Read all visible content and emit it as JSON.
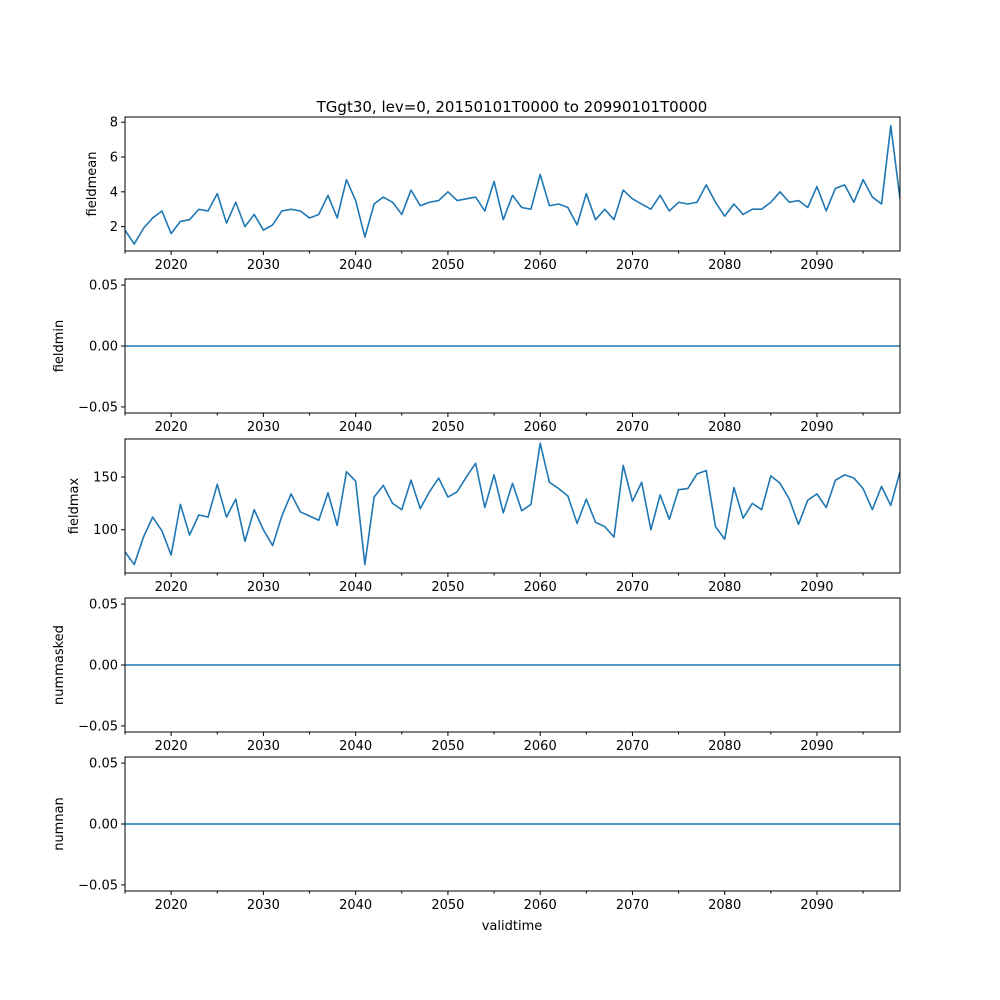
{
  "figure": {
    "title": "TGgt30, lev=0, 20150101T0000 to 20990101T0000",
    "xlabel": "validtime",
    "line_color": "#1f77b4"
  },
  "chart_data": [
    {
      "type": "line",
      "ylabel": "fieldmean",
      "xlim": [
        2015,
        2099
      ],
      "ylim": [
        0.6,
        8.3
      ],
      "yticks": [
        2,
        4,
        6,
        8
      ],
      "ytick_labels": [
        "2",
        "4",
        "6",
        "8"
      ],
      "xticks": [
        2020,
        2030,
        2040,
        2050,
        2060,
        2070,
        2080,
        2090
      ],
      "xtick_labels": [
        "2020",
        "2030",
        "2040",
        "2050",
        "2060",
        "2070",
        "2080",
        "2090"
      ],
      "x": [
        2015,
        2016,
        2017,
        2018,
        2019,
        2020,
        2021,
        2022,
        2023,
        2024,
        2025,
        2026,
        2027,
        2028,
        2029,
        2030,
        2031,
        2032,
        2033,
        2034,
        2035,
        2036,
        2037,
        2038,
        2039,
        2040,
        2041,
        2042,
        2043,
        2044,
        2045,
        2046,
        2047,
        2048,
        2049,
        2050,
        2051,
        2052,
        2053,
        2054,
        2055,
        2056,
        2057,
        2058,
        2059,
        2060,
        2061,
        2062,
        2063,
        2064,
        2065,
        2066,
        2067,
        2068,
        2069,
        2070,
        2071,
        2072,
        2073,
        2074,
        2075,
        2076,
        2077,
        2078,
        2079,
        2080,
        2081,
        2082,
        2083,
        2084,
        2085,
        2086,
        2087,
        2088,
        2089,
        2090,
        2091,
        2092,
        2093,
        2094,
        2095,
        2096,
        2097,
        2098,
        2099
      ],
      "y": [
        1.8,
        1.0,
        1.9,
        2.5,
        2.9,
        1.6,
        2.3,
        2.4,
        3.0,
        2.9,
        3.9,
        2.2,
        3.4,
        2.0,
        2.7,
        1.8,
        2.1,
        2.9,
        3.0,
        2.9,
        2.5,
        2.7,
        3.8,
        2.5,
        4.7,
        3.5,
        1.4,
        3.3,
        3.7,
        3.4,
        2.7,
        4.1,
        3.2,
        3.4,
        3.5,
        4.0,
        3.5,
        3.6,
        3.7,
        2.9,
        4.6,
        2.4,
        3.8,
        3.1,
        3.0,
        5.0,
        3.2,
        3.3,
        3.1,
        2.1,
        3.9,
        2.4,
        3.0,
        2.4,
        4.1,
        3.6,
        3.3,
        3.0,
        3.8,
        2.9,
        3.4,
        3.3,
        3.4,
        4.4,
        3.4,
        2.6,
        3.3,
        2.7,
        3.0,
        3.0,
        3.4,
        4.0,
        3.4,
        3.5,
        3.1,
        4.3,
        2.9,
        4.2,
        4.4,
        3.4,
        4.7,
        3.7,
        3.3,
        7.8,
        3.6
      ]
    },
    {
      "type": "line",
      "ylabel": "fieldmin",
      "xlim": [
        2015,
        2099
      ],
      "ylim": [
        -0.055,
        0.055
      ],
      "yticks": [
        -0.05,
        0.0,
        0.05
      ],
      "ytick_labels": [
        "−0.05",
        "0.00",
        "0.05"
      ],
      "xticks": [
        2020,
        2030,
        2040,
        2050,
        2060,
        2070,
        2080,
        2090
      ],
      "xtick_labels": [
        "2020",
        "2030",
        "2040",
        "2050",
        "2060",
        "2070",
        "2080",
        "2090"
      ],
      "x": [
        2015,
        2099
      ],
      "y": [
        0,
        0
      ]
    },
    {
      "type": "line",
      "ylabel": "fieldmax",
      "xlim": [
        2015,
        2099
      ],
      "ylim": [
        59,
        186
      ],
      "yticks": [
        100,
        150
      ],
      "ytick_labels": [
        "100",
        "150"
      ],
      "xticks": [
        2020,
        2030,
        2040,
        2050,
        2060,
        2070,
        2080,
        2090
      ],
      "xtick_labels": [
        "2020",
        "2030",
        "2040",
        "2050",
        "2060",
        "2070",
        "2080",
        "2090"
      ],
      "x": [
        2015,
        2016,
        2017,
        2018,
        2019,
        2020,
        2021,
        2022,
        2023,
        2024,
        2025,
        2026,
        2027,
        2028,
        2029,
        2030,
        2031,
        2032,
        2033,
        2034,
        2035,
        2036,
        2037,
        2038,
        2039,
        2040,
        2041,
        2042,
        2043,
        2044,
        2045,
        2046,
        2047,
        2048,
        2049,
        2050,
        2051,
        2052,
        2053,
        2054,
        2055,
        2056,
        2057,
        2058,
        2059,
        2060,
        2061,
        2062,
        2063,
        2064,
        2065,
        2066,
        2067,
        2068,
        2069,
        2070,
        2071,
        2072,
        2073,
        2074,
        2075,
        2076,
        2077,
        2078,
        2079,
        2080,
        2081,
        2082,
        2083,
        2084,
        2085,
        2086,
        2087,
        2088,
        2089,
        2090,
        2091,
        2092,
        2093,
        2094,
        2095,
        2096,
        2097,
        2098,
        2099
      ],
      "y": [
        79,
        67,
        93,
        112,
        99,
        76,
        124,
        95,
        114,
        112,
        143,
        112,
        129,
        89,
        119,
        100,
        85,
        113,
        134,
        117,
        113,
        109,
        135,
        104,
        155,
        146,
        67,
        131,
        142,
        125,
        119,
        147,
        120,
        136,
        149,
        131,
        136,
        150,
        163,
        121,
        152,
        116,
        144,
        118,
        124,
        182,
        145,
        139,
        132,
        106,
        129,
        107,
        103,
        93,
        161,
        127,
        145,
        100,
        133,
        110,
        138,
        139,
        153,
        156,
        103,
        91,
        140,
        111,
        125,
        119,
        151,
        144,
        129,
        105,
        128,
        134,
        121,
        147,
        152,
        149,
        139,
        119,
        141,
        123,
        155
      ]
    },
    {
      "type": "line",
      "ylabel": "nummasked",
      "xlim": [
        2015,
        2099
      ],
      "ylim": [
        -0.055,
        0.055
      ],
      "yticks": [
        -0.05,
        0.0,
        0.05
      ],
      "ytick_labels": [
        "−0.05",
        "0.00",
        "0.05"
      ],
      "xticks": [
        2020,
        2030,
        2040,
        2050,
        2060,
        2070,
        2080,
        2090
      ],
      "xtick_labels": [
        "2020",
        "2030",
        "2040",
        "2050",
        "2060",
        "2070",
        "2080",
        "2090"
      ],
      "x": [
        2015,
        2099
      ],
      "y": [
        0,
        0
      ]
    },
    {
      "type": "line",
      "ylabel": "numnan",
      "xlim": [
        2015,
        2099
      ],
      "ylim": [
        -0.055,
        0.055
      ],
      "yticks": [
        -0.05,
        0.0,
        0.05
      ],
      "ytick_labels": [
        "−0.05",
        "0.00",
        "0.05"
      ],
      "xticks": [
        2020,
        2030,
        2040,
        2050,
        2060,
        2070,
        2080,
        2090
      ],
      "xtick_labels": [
        "2020",
        "2030",
        "2040",
        "2050",
        "2060",
        "2070",
        "2080",
        "2090"
      ],
      "x": [
        2015,
        2099
      ],
      "y": [
        0,
        0
      ]
    }
  ]
}
